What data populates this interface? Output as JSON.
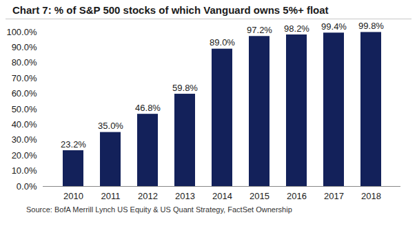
{
  "chart_data": {
    "type": "bar",
    "title": "Chart 7: % of S&P 500 stocks of which Vanguard owns 5%+ float",
    "source": "Source: BofA Merrill Lynch US Equity & US Quant Strategy, FactSet Ownership",
    "categories": [
      "2010",
      "2011",
      "2012",
      "2013",
      "2014",
      "2015",
      "2016",
      "2017",
      "2018"
    ],
    "values": [
      23.2,
      35.0,
      46.8,
      59.8,
      89.0,
      97.2,
      98.2,
      99.4,
      99.8
    ],
    "value_labels": [
      "23.2%",
      "35.0%",
      "46.8%",
      "59.8%",
      "89.0%",
      "97.2%",
      "98.2%",
      "99.4%",
      "99.8%"
    ],
    "color": "#13215a",
    "ylim": [
      0,
      100
    ],
    "yticks": [
      {
        "value": 0,
        "label": "0.0%"
      },
      {
        "value": 10,
        "label": "10.0%"
      },
      {
        "value": 20,
        "label": "20.0%"
      },
      {
        "value": 30,
        "label": "30.0%"
      },
      {
        "value": 40,
        "label": "40.0%"
      },
      {
        "value": 50,
        "label": "50.0%"
      },
      {
        "value": 60,
        "label": "60.0%"
      },
      {
        "value": 70,
        "label": "70.0%"
      },
      {
        "value": 80,
        "label": "80.0%"
      },
      {
        "value": 90,
        "label": "90.0%"
      },
      {
        "value": 100,
        "label": "100.0%"
      }
    ],
    "grid": false,
    "data_labels": true
  }
}
